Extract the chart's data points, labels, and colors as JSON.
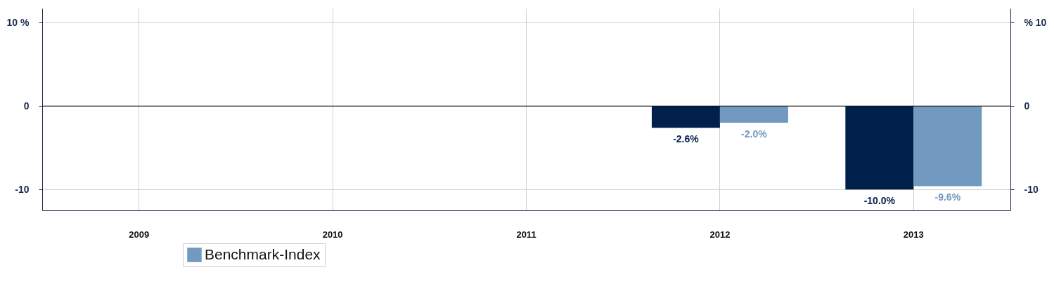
{
  "chart_data": {
    "type": "bar",
    "categories": [
      "2009",
      "2010",
      "2011",
      "2012",
      "2013"
    ],
    "series": [
      {
        "color": "#001f4a",
        "values": [
          null,
          null,
          null,
          -2.6,
          -10.0
        ],
        "value_labels": [
          null,
          null,
          null,
          "-2.6%",
          "-10.0%"
        ]
      },
      {
        "name": "Benchmark-Index",
        "color": "#7299bf",
        "values": [
          null,
          null,
          null,
          -2.0,
          -9.6
        ],
        "value_labels": [
          null,
          null,
          null,
          "-2.0%",
          "-9.6%"
        ]
      }
    ],
    "ylim": [
      -12.5,
      11.7
    ],
    "yticks": [
      {
        "value": -10,
        "label": "-10"
      },
      {
        "value": 0,
        "label": "0"
      },
      {
        "value": 10,
        "label": "10  %"
      }
    ],
    "y2lim": [
      -12.5,
      11.7
    ],
    "y2ticks": [
      {
        "value": -10,
        "label": "-10"
      },
      {
        "value": 0,
        "label": "0"
      },
      {
        "value": 10,
        "label": "%  10"
      }
    ],
    "ref_lines": [
      {
        "axis": "y",
        "value": 0,
        "color": "#000000"
      }
    ],
    "grid": true,
    "legend": "bottom"
  }
}
